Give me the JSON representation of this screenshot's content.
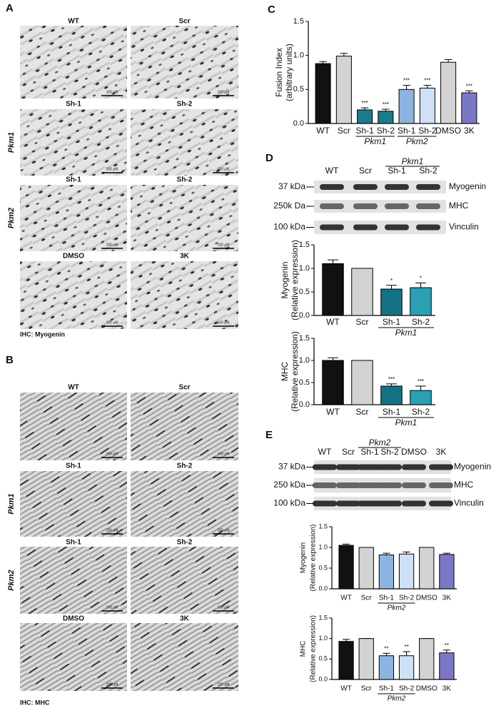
{
  "panels": [
    {
      "label": "A",
      "rows": [
        {
          "group": null,
          "images": [
            "WT",
            "Scr"
          ]
        },
        {
          "group": "Pkm1",
          "images": [
            "Sh-1",
            "Sh-2"
          ]
        },
        {
          "group": "Pkm2",
          "images": [
            "Sh-1",
            "Sh-2"
          ]
        },
        {
          "group": null,
          "images": [
            "DMSO",
            "3K"
          ]
        }
      ],
      "scale_bar": "100 μM",
      "caption": "IHC: Myogenin"
    },
    {
      "label": "B",
      "rows": [
        {
          "group": null,
          "images": [
            "WT",
            "Scr"
          ]
        },
        {
          "group": "Pkm1",
          "images": [
            "Sh-1",
            "Sh-2"
          ]
        },
        {
          "group": "Pkm2",
          "images": [
            "Sh-1",
            "Sh-2"
          ]
        },
        {
          "group": null,
          "images": [
            "DMSO",
            "3K"
          ]
        }
      ],
      "scale_bar": "100 μM",
      "caption": "IHC: MHC"
    },
    {
      "label": "C"
    },
    {
      "label": "D",
      "blot": {
        "lanes": [
          "WT",
          "Scr",
          "Sh-1",
          "Sh-2"
        ],
        "lane_group": {
          "label": "Pkm1",
          "span": [
            2,
            3
          ]
        },
        "bands": [
          {
            "marker": "37 kDa",
            "protein": "Myogenin"
          },
          {
            "marker": "250k Da",
            "protein": "MHC"
          },
          {
            "marker": "100 kDa",
            "protein": "Vinculin"
          }
        ]
      }
    },
    {
      "label": "E",
      "blot": {
        "lanes": [
          "WT",
          "Scr",
          "Sh-1",
          "Sh-2",
          "DMSO",
          "3K"
        ],
        "lane_group": {
          "label": "Pkm2",
          "span": [
            2,
            3
          ]
        },
        "bands": [
          {
            "marker": "37 kDa",
            "protein": "Myogenin"
          },
          {
            "marker": "250 kDa",
            "protein": "MHC"
          },
          {
            "marker": "100 kDa",
            "protein": "Vinculin"
          }
        ]
      }
    }
  ],
  "chart_data": [
    {
      "type": "bar",
      "ylabel": [
        "Fusion Index",
        "(arbitrary units)"
      ],
      "categories": [
        "WT",
        "Scr",
        "Sh-1",
        "Sh-2",
        "Sh-1",
        "Sh-2",
        "DMSO",
        "3K"
      ],
      "values": [
        0.88,
        0.99,
        0.2,
        0.18,
        0.5,
        0.52,
        0.9,
        0.45
      ],
      "errors": [
        0.03,
        0.04,
        0.03,
        0.03,
        0.06,
        0.04,
        0.04,
        0.03
      ],
      "annotations": [
        null,
        null,
        "***",
        "***",
        "***",
        "***",
        null,
        "***"
      ],
      "colors": [
        "#111111",
        "#d3d3d3",
        "#1b7b8c",
        "#1b7b8c",
        "#8bb5e0",
        "#cfe1f4",
        "#d3d3d3",
        "#7a78c6"
      ],
      "groups": [
        {
          "label": "Pkm1",
          "span": [
            2,
            3
          ]
        },
        {
          "label": "Pkm2",
          "span": [
            4,
            5
          ]
        }
      ],
      "ylim": [
        0,
        1.5
      ],
      "yticks": [
        {
          "value": 0,
          "label": "0.0"
        },
        0.5,
        {
          "value": 1,
          "label": "1.0"
        },
        1.5
      ]
    },
    {
      "type": "bar",
      "ylabel": [
        "Myogenin",
        "(Relative expression)"
      ],
      "categories": [
        "WT",
        "Scr",
        "Sh-1",
        "Sh-2"
      ],
      "values": [
        1.1,
        1.0,
        0.56,
        0.59
      ],
      "errors": [
        0.08,
        0,
        0.08,
        0.1
      ],
      "annotations": [
        null,
        null,
        "*",
        "*"
      ],
      "colors": [
        "#111111",
        "#d3d3d3",
        "#137384",
        "#2aa0b2"
      ],
      "groups": [
        {
          "label": "Pkm1",
          "span": [
            2,
            3
          ]
        }
      ],
      "ylim": [
        0,
        1.5
      ],
      "yticks": [
        {
          "value": 0,
          "label": "0.0"
        },
        0.5,
        {
          "value": 1,
          "label": "1.0"
        },
        1.5
      ]
    },
    {
      "type": "bar",
      "ylabel": [
        "MHC",
        "(Relative expression)"
      ],
      "categories": [
        "WT",
        "Scr",
        "Sh-1",
        "Sh-2"
      ],
      "values": [
        1.0,
        1.0,
        0.42,
        0.32
      ],
      "errors": [
        0.06,
        0,
        0.05,
        0.1
      ],
      "annotations": [
        null,
        null,
        "***",
        "***"
      ],
      "colors": [
        "#111111",
        "#d3d3d3",
        "#137384",
        "#2aa0b2"
      ],
      "groups": [
        {
          "label": "Pkm1",
          "span": [
            2,
            3
          ]
        }
      ],
      "ylim": [
        0,
        1.5
      ],
      "yticks": [
        {
          "value": 0,
          "label": "0.0"
        },
        0.5,
        {
          "value": 1,
          "label": "1.0"
        },
        1.5
      ]
    },
    {
      "type": "bar",
      "ylabel": [
        "Myogenin",
        "(Relative expression)"
      ],
      "categories": [
        "WT",
        "Scr",
        "Sh-1",
        "Sh-2",
        "DMSO",
        "3K"
      ],
      "values": [
        1.05,
        1.0,
        0.82,
        0.84,
        1.0,
        0.83
      ],
      "errors": [
        0.03,
        0,
        0.04,
        0.05,
        0,
        0.03
      ],
      "colors": [
        "#111111",
        "#d3d3d3",
        "#8bb5e0",
        "#cfe1f4",
        "#d3d3d3",
        "#7a78c6"
      ],
      "groups": [
        {
          "label": "Pkm2",
          "span": [
            2,
            3
          ]
        }
      ],
      "ylim": [
        0,
        1.5
      ],
      "yticks": [
        {
          "value": 0,
          "label": "0.0"
        },
        0.5,
        {
          "value": 1,
          "label": "1.0"
        },
        1.5
      ]
    },
    {
      "type": "bar",
      "ylabel": [
        "MHC",
        "(Relative expression)"
      ],
      "categories": [
        "WT",
        "Scr",
        "Sh-1",
        "Sh-2",
        "DMSO",
        "3K"
      ],
      "values": [
        0.93,
        1.0,
        0.58,
        0.58,
        1.0,
        0.65
      ],
      "errors": [
        0.05,
        0,
        0.06,
        0.1,
        0,
        0.07
      ],
      "annotations": [
        null,
        null,
        "**",
        "**",
        null,
        "**"
      ],
      "colors": [
        "#111111",
        "#d3d3d3",
        "#8bb5e0",
        "#cfe1f4",
        "#d3d3d3",
        "#7a78c6"
      ],
      "groups": [
        {
          "label": "Pkm2",
          "span": [
            2,
            3
          ]
        }
      ],
      "ylim": [
        0,
        1.5
      ],
      "yticks": [
        {
          "value": 0,
          "label": "0.0"
        },
        0.5,
        {
          "value": 1,
          "label": "1.0"
        },
        1.5
      ]
    }
  ]
}
